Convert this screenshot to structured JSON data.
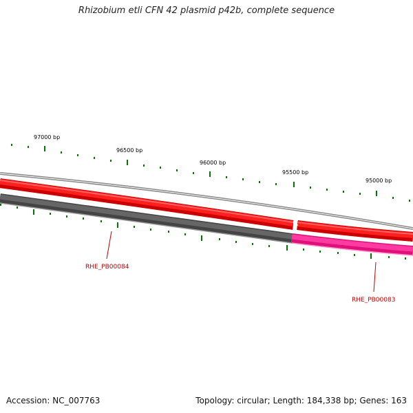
{
  "title": "Rhizobium etli CFN 42 plasmid p42b, complete sequence",
  "footer": {
    "accession": "Accession: NC_007763",
    "summary": "Topology: circular; Length: 184,338 bp; Genes: 163"
  },
  "scale_labels": [
    "97000 bp",
    "96500 bp",
    "96000 bp",
    "95500 bp",
    "95000 bp"
  ],
  "genes": [
    {
      "name": "RHE_PB00084",
      "color": "#ff0000",
      "track": "outer"
    },
    {
      "name": "RHE_PB00083",
      "color": "#ff1493",
      "track": "inner"
    }
  ],
  "colors": {
    "forward": "#ff0000",
    "reverse_highlight": "#ff1493",
    "reverse_other": "#555555",
    "backbone": "#888888",
    "ticks": "#007700",
    "gene_label": "#c00000"
  }
}
